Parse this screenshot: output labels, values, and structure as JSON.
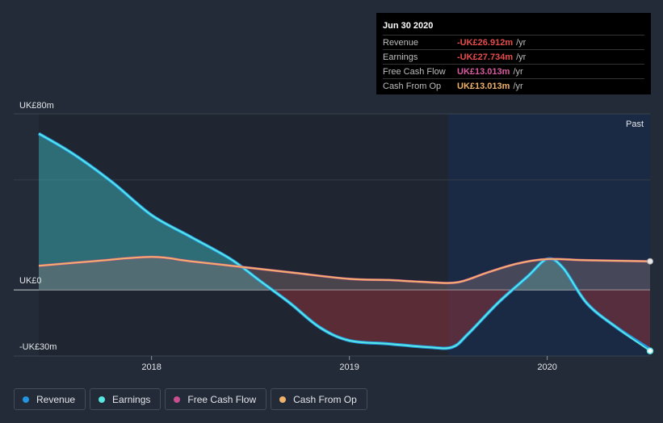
{
  "chart_data": {
    "type": "area",
    "currency_unit": "UK£",
    "y_labels": {
      "top": "UK£80m",
      "zero": "UK£0",
      "bottom": "-UK£30m"
    },
    "ylim": [
      -30,
      80
    ],
    "x_ticks": [
      {
        "label": "2018",
        "t": 2018.0
      },
      {
        "label": "2019",
        "t": 2019.0
      },
      {
        "label": "2020",
        "t": 2020.0
      }
    ],
    "xlim": [
      2017.43,
      2020.52
    ],
    "past_label": "Past",
    "past_start": 2019.5,
    "series": [
      {
        "name": "Revenue",
        "key": "revenue",
        "color": "#2394df",
        "points": [
          [
            2017.43,
            71
          ],
          [
            2017.6,
            62
          ],
          [
            2017.8,
            49
          ],
          [
            2018.0,
            34
          ],
          [
            2018.2,
            24
          ],
          [
            2018.4,
            14
          ],
          [
            2018.55,
            4
          ],
          [
            2018.7,
            -6
          ],
          [
            2018.85,
            -17
          ],
          [
            2019.0,
            -23
          ],
          [
            2019.2,
            -24.5
          ],
          [
            2019.4,
            -26
          ],
          [
            2019.52,
            -26
          ],
          [
            2019.6,
            -20
          ],
          [
            2019.75,
            -6
          ],
          [
            2019.9,
            6
          ],
          [
            2020.0,
            14
          ],
          [
            2020.08,
            10
          ],
          [
            2020.2,
            -6
          ],
          [
            2020.35,
            -17
          ],
          [
            2020.52,
            -27
          ]
        ]
      },
      {
        "name": "Earnings",
        "key": "earnings",
        "color": "#58e7e3",
        "points": [
          [
            2017.43,
            71
          ],
          [
            2017.6,
            62
          ],
          [
            2017.8,
            49
          ],
          [
            2018.0,
            34
          ],
          [
            2018.2,
            24
          ],
          [
            2018.4,
            14
          ],
          [
            2018.55,
            4
          ],
          [
            2018.7,
            -6
          ],
          [
            2018.85,
            -17
          ],
          [
            2019.0,
            -23
          ],
          [
            2019.2,
            -24.5
          ],
          [
            2019.4,
            -26
          ],
          [
            2019.52,
            -26
          ],
          [
            2019.6,
            -20
          ],
          [
            2019.75,
            -6
          ],
          [
            2019.9,
            6
          ],
          [
            2020.0,
            14
          ],
          [
            2020.08,
            10
          ],
          [
            2020.2,
            -6
          ],
          [
            2020.35,
            -17
          ],
          [
            2020.52,
            -27.7
          ]
        ]
      },
      {
        "name": "Free Cash Flow",
        "key": "fcf",
        "color": "#c94d8f",
        "points": [
          [
            2017.43,
            11
          ],
          [
            2017.7,
            13
          ],
          [
            2018.0,
            15
          ],
          [
            2018.2,
            13
          ],
          [
            2018.5,
            10
          ],
          [
            2018.7,
            8
          ],
          [
            2019.0,
            5
          ],
          [
            2019.2,
            4.5
          ],
          [
            2019.4,
            3.5
          ],
          [
            2019.55,
            3.5
          ],
          [
            2019.7,
            8
          ],
          [
            2019.85,
            12
          ],
          [
            2020.0,
            14
          ],
          [
            2020.2,
            13.5
          ],
          [
            2020.52,
            13.0
          ]
        ]
      },
      {
        "name": "Cash From Op",
        "key": "cfo",
        "color": "#f0b26b",
        "points": [
          [
            2017.43,
            11
          ],
          [
            2017.7,
            13
          ],
          [
            2018.0,
            15
          ],
          [
            2018.2,
            13
          ],
          [
            2018.5,
            10
          ],
          [
            2018.7,
            8
          ],
          [
            2019.0,
            5
          ],
          [
            2019.2,
            4.5
          ],
          [
            2019.4,
            3.5
          ],
          [
            2019.55,
            3.5
          ],
          [
            2019.7,
            8
          ],
          [
            2019.85,
            12
          ],
          [
            2020.0,
            14
          ],
          [
            2020.2,
            13.5
          ],
          [
            2020.52,
            13.0
          ]
        ]
      }
    ],
    "tooltip": {
      "date": "Jun 30 2020",
      "unit": "/yr",
      "rows": [
        {
          "label": "Revenue",
          "value": "-UK£26.912m",
          "color": "#e74c4c"
        },
        {
          "label": "Earnings",
          "value": "-UK£27.734m",
          "color": "#e74c4c"
        },
        {
          "label": "Free Cash Flow",
          "value": "UK£13.013m",
          "color": "#d95ca0"
        },
        {
          "label": "Cash From Op",
          "value": "UK£13.013m",
          "color": "#f0b26b"
        }
      ]
    }
  },
  "legend": [
    {
      "label": "Revenue",
      "color": "#2394df"
    },
    {
      "label": "Earnings",
      "color": "#58e7e3"
    },
    {
      "label": "Free Cash Flow",
      "color": "#c94d8f"
    },
    {
      "label": "Cash From Op",
      "color": "#f0b26b"
    }
  ]
}
